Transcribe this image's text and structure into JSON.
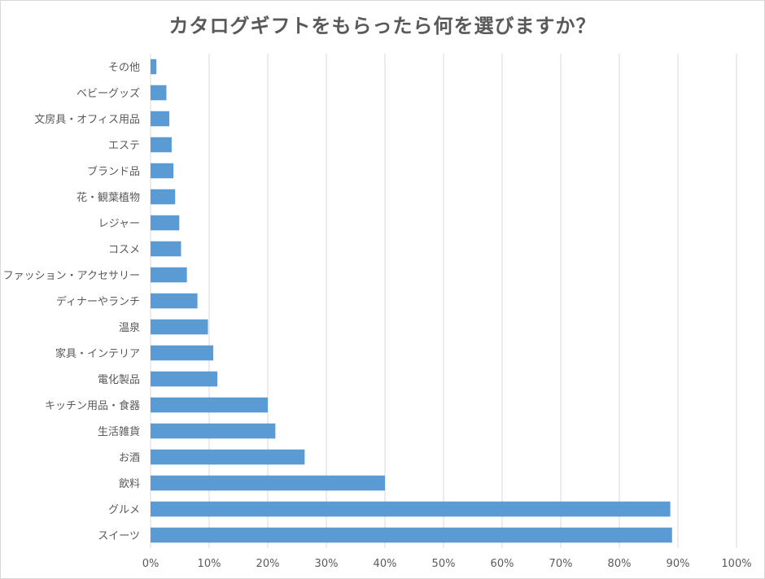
{
  "chart_data": {
    "type": "bar",
    "orientation": "horizontal",
    "title": "カタログギフトをもらったら何を選びますか？",
    "xlabel": "",
    "ylabel": "",
    "xlim": [
      0,
      100
    ],
    "value_format": "percent",
    "grid": true,
    "ticks": [
      "0%",
      "10%",
      "20%",
      "30%",
      "40%",
      "50%",
      "60%",
      "70%",
      "80%",
      "90%",
      "100%"
    ],
    "tick_values": [
      0,
      10,
      20,
      30,
      40,
      50,
      60,
      70,
      80,
      90,
      100
    ],
    "bar_color": "#5b9bd5",
    "categories": [
      "その他",
      "ベビーグッズ",
      "文房具・オフィス用品",
      "エステ",
      "ブランド品",
      "花・観葉植物",
      "レジャー",
      "コスメ",
      "ファッション・アクセサリー",
      "ディナーやランチ",
      "温泉",
      "家具・インテリア",
      "電化製品",
      "キッチン用品・食器",
      "生活雑貨",
      "お酒",
      "飲料",
      "グルメ",
      "スイーツ"
    ],
    "values": [
      1,
      2.7,
      3.2,
      3.6,
      3.9,
      4.2,
      4.9,
      5.2,
      6.2,
      8,
      9.8,
      10.7,
      11.4,
      20,
      21.3,
      26.3,
      40,
      88.7,
      89
    ]
  }
}
